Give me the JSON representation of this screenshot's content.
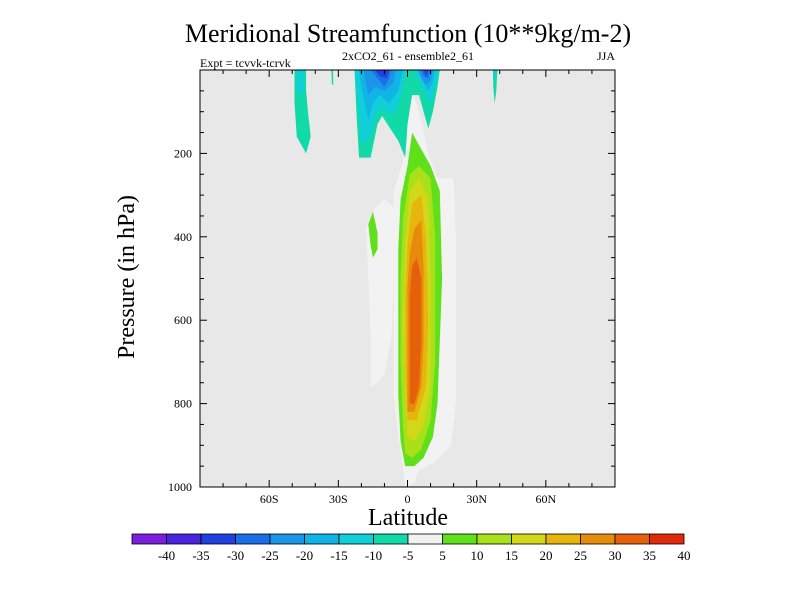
{
  "chart_data": {
    "type": "contour",
    "title": "Meridional Streamfunction (10**9kg/m-2)",
    "subtitle_left": "Expt = tcvvk-tcrvk",
    "subtitle_center": "2xCO2_61 - ensemble2_61",
    "subtitle_right": "JJA",
    "xlabel": "Latitude",
    "ylabel": "Pressure (in hPa)",
    "xlim": [
      -90,
      90
    ],
    "ylim": [
      1000,
      0
    ],
    "x_ticks": [
      {
        "value": -60,
        "label": "60S"
      },
      {
        "value": -30,
        "label": "30S"
      },
      {
        "value": 0,
        "label": "0"
      },
      {
        "value": 30,
        "label": "30N"
      },
      {
        "value": 60,
        "label": "60N"
      }
    ],
    "y_ticks": [
      {
        "value": 200,
        "label": "200"
      },
      {
        "value": 400,
        "label": "400"
      },
      {
        "value": 600,
        "label": "600"
      },
      {
        "value": 800,
        "label": "800"
      },
      {
        "value": 1000,
        "label": "1000"
      }
    ],
    "colorbar": {
      "labels": [
        "-40",
        "-35",
        "-30",
        "-25",
        "-20",
        "-15",
        "-10",
        "-5",
        "5",
        "10",
        "15",
        "20",
        "25",
        "30",
        "35",
        "40"
      ],
      "colors": [
        "#7a1ee0",
        "#4a22e0",
        "#2040e0",
        "#1a6fe6",
        "#1a95e8",
        "#10b4e6",
        "#10cfd8",
        "#12d9a8",
        "#f2f2f2",
        "#5fe01a",
        "#a8e01a",
        "#d2d818",
        "#e6b60c",
        "#e68c0c",
        "#e6600c",
        "#e02a0a"
      ]
    },
    "background_color": "#e8e8e8",
    "regions": [
      {
        "name": "main-positive-cell",
        "level": "5",
        "points": [
          [
            -1,
            1000
          ],
          [
            -2,
            945
          ],
          [
            -4,
            880
          ],
          [
            -6,
            780
          ],
          [
            -6,
            600
          ],
          [
            -6,
            420
          ],
          [
            -6,
            290
          ],
          [
            -2,
            220
          ],
          [
            0,
            160
          ],
          [
            0,
            100
          ],
          [
            2,
            50
          ],
          [
            5,
            100
          ],
          [
            9,
            200
          ],
          [
            13,
            260
          ],
          [
            20,
            260
          ],
          [
            21,
            400
          ],
          [
            21,
            600
          ],
          [
            21,
            790
          ],
          [
            19,
            900
          ],
          [
            12,
            940
          ],
          [
            5,
            960
          ],
          [
            3,
            990
          ]
        ]
      },
      {
        "name": "main-positive-cell",
        "level": "10",
        "points": [
          [
            -1,
            950
          ],
          [
            -3,
            890
          ],
          [
            -4,
            780
          ],
          [
            -4,
            600
          ],
          [
            -4,
            430
          ],
          [
            -3,
            310
          ],
          [
            0,
            230
          ],
          [
            2,
            150
          ],
          [
            5,
            180
          ],
          [
            10,
            230
          ],
          [
            14,
            290
          ],
          [
            15,
            500
          ],
          [
            13,
            800
          ],
          [
            11,
            880
          ],
          [
            7,
            930
          ],
          [
            3,
            950
          ]
        ]
      },
      {
        "name": "main-positive-cell",
        "level": "15",
        "points": [
          [
            -1,
            920
          ],
          [
            -2,
            850
          ],
          [
            -3,
            700
          ],
          [
            -3,
            500
          ],
          [
            -2,
            360
          ],
          [
            1,
            250
          ],
          [
            5,
            230
          ],
          [
            10,
            260
          ],
          [
            12,
            400
          ],
          [
            12,
            700
          ],
          [
            10,
            840
          ],
          [
            6,
            910
          ],
          [
            2,
            930
          ]
        ]
      },
      {
        "name": "main-positive-cell",
        "level": "20",
        "points": [
          [
            0,
            880
          ],
          [
            -1,
            780
          ],
          [
            -2,
            600
          ],
          [
            -1,
            420
          ],
          [
            1,
            290
          ],
          [
            5,
            260
          ],
          [
            9,
            310
          ],
          [
            10,
            500
          ],
          [
            10,
            760
          ],
          [
            7,
            850
          ],
          [
            3,
            890
          ]
        ]
      },
      {
        "name": "main-positive-cell",
        "level": "25",
        "points": [
          [
            0,
            840
          ],
          [
            -1,
            720
          ],
          [
            -1,
            540
          ],
          [
            0,
            420
          ],
          [
            2,
            320
          ],
          [
            6,
            300
          ],
          [
            8,
            400
          ],
          [
            9,
            600
          ],
          [
            8,
            760
          ],
          [
            4,
            840
          ]
        ]
      },
      {
        "name": "main-positive-cell",
        "level": "30",
        "points": [
          [
            0,
            820
          ],
          [
            0,
            680
          ],
          [
            0,
            520
          ],
          [
            1,
            440
          ],
          [
            3,
            380
          ],
          [
            6,
            360
          ],
          [
            7,
            480
          ],
          [
            7,
            650
          ],
          [
            6,
            760
          ],
          [
            3,
            820
          ]
        ]
      },
      {
        "name": "main-positive-cell",
        "level": "35",
        "points": [
          [
            1,
            800
          ],
          [
            1,
            660
          ],
          [
            1,
            540
          ],
          [
            2,
            470
          ],
          [
            4,
            450
          ],
          [
            6,
            500
          ],
          [
            6,
            650
          ],
          [
            5,
            760
          ],
          [
            3,
            800
          ]
        ]
      },
      {
        "name": "secondary-positive-cell",
        "level": "5",
        "points": [
          [
            -14,
            330
          ],
          [
            -10,
            310
          ],
          [
            -6,
            330
          ],
          [
            -6,
            500
          ],
          [
            -7,
            640
          ],
          [
            -10,
            730
          ],
          [
            -13,
            750
          ],
          [
            -16,
            760
          ],
          [
            -16,
            640
          ],
          [
            -17,
            500
          ],
          [
            -18,
            380
          ],
          [
            -16,
            350
          ]
        ]
      },
      {
        "name": "secondary-positive-cell",
        "level": "10",
        "points": [
          [
            -17,
            370
          ],
          [
            -15,
            340
          ],
          [
            -13,
            390
          ],
          [
            -13,
            430
          ],
          [
            -15,
            450
          ],
          [
            -16,
            420
          ]
        ]
      },
      {
        "name": "upper-negative-left",
        "level": "-5",
        "points": [
          [
            -49,
            0
          ],
          [
            -44,
            0
          ],
          [
            -44,
            50
          ],
          [
            -43,
            110
          ],
          [
            -42,
            160
          ],
          [
            -44,
            200
          ],
          [
            -48,
            160
          ],
          [
            -49,
            80
          ]
        ]
      },
      {
        "name": "upper-negative-left",
        "level": "-10",
        "points": [
          [
            -48,
            0
          ],
          [
            -45,
            0
          ],
          [
            -45,
            50
          ],
          [
            -47,
            60
          ],
          [
            -48,
            40
          ]
        ]
      },
      {
        "name": "upper-negative-center",
        "level": "-5",
        "points": [
          [
            -23,
            0
          ],
          [
            0,
            0
          ],
          [
            14,
            0
          ],
          [
            13,
            40
          ],
          [
            11,
            100
          ],
          [
            9,
            140
          ],
          [
            7,
            100
          ],
          [
            5,
            60
          ],
          [
            2,
            60
          ],
          [
            0,
            130
          ],
          [
            -1,
            210
          ],
          [
            -4,
            170
          ],
          [
            -11,
            110
          ],
          [
            -13,
            130
          ],
          [
            -16,
            210
          ],
          [
            -21,
            210
          ],
          [
            -22,
            120
          ]
        ]
      },
      {
        "name": "upper-negative-center",
        "level": "-10",
        "points": [
          [
            -23,
            0
          ],
          [
            -1,
            0
          ],
          [
            -2,
            40
          ],
          [
            -4,
            90
          ],
          [
            -7,
            110
          ],
          [
            -11,
            90
          ],
          [
            -14,
            110
          ],
          [
            -16,
            160
          ],
          [
            -20,
            180
          ],
          [
            -21,
            110
          ]
        ]
      },
      {
        "name": "upper-negative-center",
        "level": "-15",
        "points": [
          [
            -21,
            0
          ],
          [
            -2,
            0
          ],
          [
            -4,
            50
          ],
          [
            -8,
            80
          ],
          [
            -12,
            60
          ],
          [
            -15,
            80
          ],
          [
            -17,
            120
          ],
          [
            -20,
            40
          ]
        ]
      },
      {
        "name": "upper-negative-center",
        "level": "-20",
        "points": [
          [
            -19,
            0
          ],
          [
            -5,
            0
          ],
          [
            -6,
            30
          ],
          [
            -10,
            50
          ],
          [
            -14,
            40
          ],
          [
            -17,
            60
          ],
          [
            -18,
            30
          ]
        ]
      },
      {
        "name": "upper-negative-center",
        "level": "-25",
        "points": [
          [
            -16,
            0
          ],
          [
            -7,
            0
          ],
          [
            -8,
            20
          ],
          [
            -10,
            40
          ],
          [
            -13,
            20
          ]
        ]
      },
      {
        "name": "upper-negative-center",
        "level": "-30",
        "points": [
          [
            -14,
            0
          ],
          [
            -8,
            0
          ],
          [
            -9,
            20
          ],
          [
            -12,
            15
          ]
        ]
      },
      {
        "name": "upper-negative-center",
        "level": "-35",
        "points": [
          [
            -11,
            0
          ],
          [
            -9,
            0
          ],
          [
            -10,
            10
          ]
        ]
      },
      {
        "name": "upper-negative-center-right",
        "level": "-10",
        "points": [
          [
            3,
            0
          ],
          [
            13,
            0
          ],
          [
            12,
            40
          ],
          [
            10,
            80
          ],
          [
            8,
            60
          ],
          [
            5,
            30
          ]
        ]
      },
      {
        "name": "upper-negative-center-right",
        "level": "-15",
        "points": [
          [
            4,
            0
          ],
          [
            12,
            0
          ],
          [
            11,
            30
          ],
          [
            9,
            50
          ],
          [
            7,
            30
          ]
        ]
      },
      {
        "name": "upper-negative-center-right",
        "level": "-20",
        "points": [
          [
            5,
            0
          ],
          [
            11,
            0
          ],
          [
            10,
            25
          ],
          [
            8,
            35
          ],
          [
            6,
            20
          ]
        ]
      },
      {
        "name": "upper-negative-center-right",
        "level": "-25",
        "points": [
          [
            6,
            0
          ],
          [
            10,
            0
          ],
          [
            9,
            20
          ],
          [
            7,
            15
          ]
        ]
      },
      {
        "name": "upper-negative-center-right",
        "level": "-30",
        "points": [
          [
            7,
            0
          ],
          [
            9,
            0
          ],
          [
            8,
            15
          ]
        ]
      },
      {
        "name": "upper-negative-center-right",
        "level": "-40",
        "points": [
          [
            7.5,
            0
          ],
          [
            8.5,
            0
          ],
          [
            8,
            8
          ]
        ]
      },
      {
        "name": "upper-negative-small",
        "level": "-5",
        "points": [
          [
            -33,
            0
          ],
          [
            -32.3,
            0
          ],
          [
            -32.2,
            35
          ],
          [
            -32.8,
            35
          ]
        ]
      },
      {
        "name": "upper-negative-right",
        "level": "-5",
        "points": [
          [
            37,
            0
          ],
          [
            39,
            0
          ],
          [
            38.5,
            50
          ],
          [
            37.8,
            80
          ],
          [
            37.2,
            40
          ]
        ]
      },
      {
        "name": "upper-negative-right",
        "level": "-10",
        "points": [
          [
            37.4,
            0
          ],
          [
            38.6,
            0
          ],
          [
            38,
            25
          ]
        ]
      }
    ]
  }
}
